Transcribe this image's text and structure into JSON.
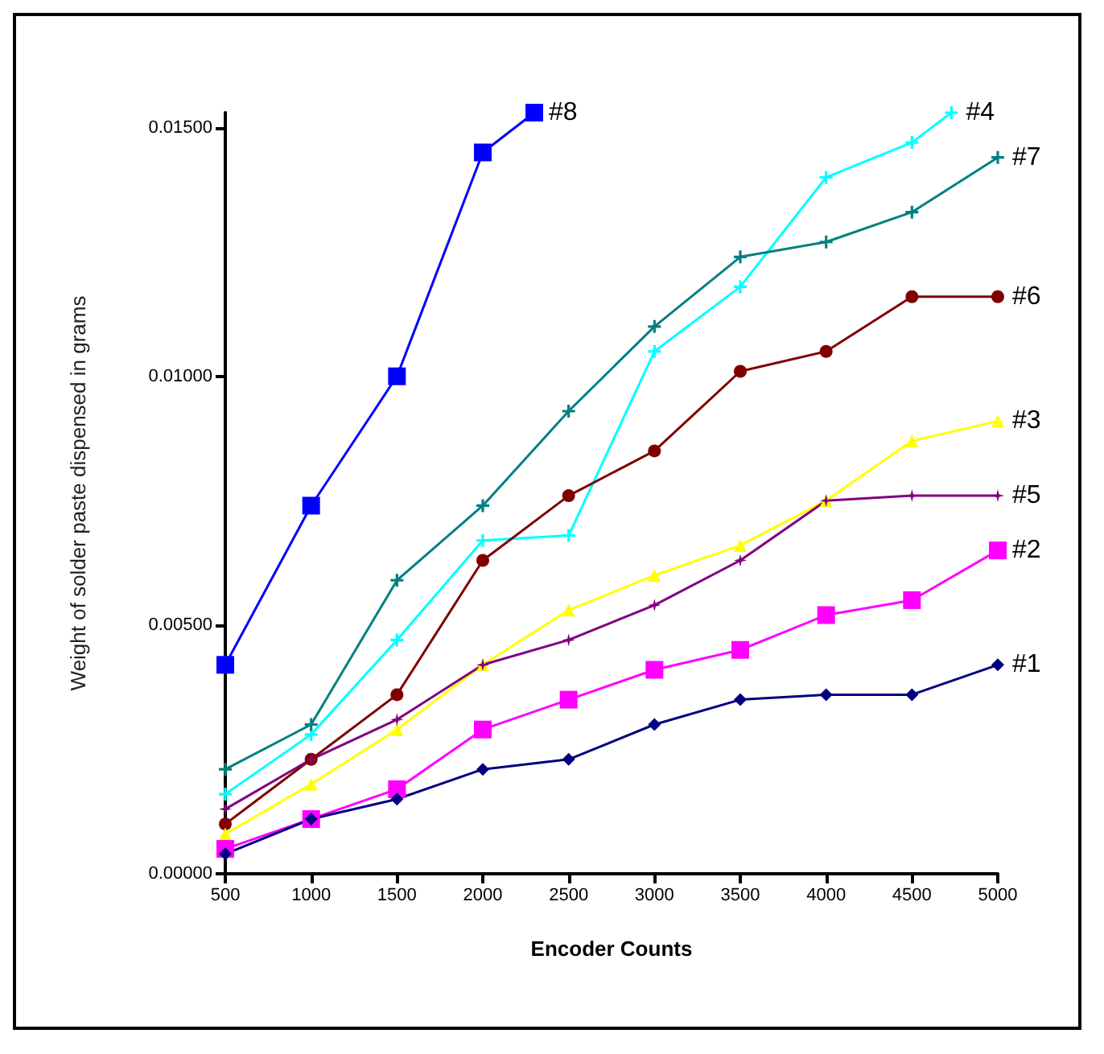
{
  "chart_data": {
    "type": "line",
    "xlabel": "Encoder Counts",
    "ylabel": "Weight of solder paste dispensed in grams",
    "grid": false,
    "legend": false,
    "xlim": [
      500,
      5000
    ],
    "xticks": [
      500,
      1000,
      1500,
      2000,
      2500,
      3000,
      3500,
      4000,
      4500,
      5000
    ],
    "ylim": [
      0,
      0.0153
    ],
    "yticks": [
      {
        "value": 0,
        "label": "0.00000"
      },
      {
        "value": 0.005,
        "label": "0.00500"
      },
      {
        "value": 0.01,
        "label": "0.01000"
      },
      {
        "value": 0.015,
        "label": "0.01500"
      }
    ],
    "series": [
      {
        "name": "#8",
        "color": "#0000ff",
        "marker": "square",
        "x": [
          500,
          1000,
          1500,
          2000,
          2300
        ],
        "values": [
          0.0042,
          0.0074,
          0.01,
          0.0145,
          0.0153
        ]
      },
      {
        "name": "#4",
        "color": "#00ffff",
        "marker": "cross",
        "x": [
          500,
          1000,
          1500,
          2000,
          2500,
          3000,
          3500,
          4000,
          4500,
          4730
        ],
        "values": [
          0.0016,
          0.0028,
          0.0047,
          0.0067,
          0.0068,
          0.0105,
          0.0118,
          0.014,
          0.0147,
          0.0153
        ]
      },
      {
        "name": "#7",
        "color": "#008080",
        "marker": "cross",
        "x": [
          500,
          1000,
          1500,
          2000,
          2500,
          3000,
          3500,
          4000,
          4500,
          5000
        ],
        "values": [
          0.0021,
          0.003,
          0.0059,
          0.0074,
          0.0093,
          0.011,
          0.0124,
          0.0127,
          0.0133,
          0.0144
        ]
      },
      {
        "name": "#6",
        "color": "#800000",
        "marker": "circle",
        "x": [
          500,
          1000,
          1500,
          2000,
          2500,
          3000,
          3500,
          4000,
          4500,
          5000
        ],
        "values": [
          0.001,
          0.0023,
          0.0036,
          0.0063,
          0.0076,
          0.0085,
          0.0101,
          0.0105,
          0.0116,
          0.0116
        ]
      },
      {
        "name": "#3",
        "color": "#ffff00",
        "marker": "triangle",
        "x": [
          500,
          1000,
          1500,
          2000,
          2500,
          3000,
          3500,
          4000,
          4500,
          5000
        ],
        "values": [
          0.0008,
          0.0018,
          0.0029,
          0.0042,
          0.0053,
          0.006,
          0.0066,
          0.0075,
          0.0087,
          0.0091
        ]
      },
      {
        "name": "#5",
        "color": "#800080",
        "marker": "star",
        "x": [
          500,
          1000,
          1500,
          2000,
          2500,
          3000,
          3500,
          4000,
          4500,
          5000
        ],
        "values": [
          0.0013,
          0.0023,
          0.0031,
          0.0042,
          0.0047,
          0.0054,
          0.0063,
          0.0075,
          0.0076,
          0.0076
        ]
      },
      {
        "name": "#2",
        "color": "#ff00ff",
        "marker": "square",
        "x": [
          500,
          1000,
          1500,
          2000,
          2500,
          3000,
          3500,
          4000,
          4500,
          5000
        ],
        "values": [
          0.0005,
          0.0011,
          0.0017,
          0.0029,
          0.0035,
          0.0041,
          0.0045,
          0.0052,
          0.0055,
          0.0065
        ]
      },
      {
        "name": "#1",
        "color": "#000080",
        "marker": "diamond",
        "x": [
          500,
          1000,
          1500,
          2000,
          2500,
          3000,
          3500,
          4000,
          4500,
          5000
        ],
        "values": [
          0.0004,
          0.0011,
          0.0015,
          0.0021,
          0.0023,
          0.003,
          0.0035,
          0.0036,
          0.0036,
          0.0042
        ]
      }
    ]
  }
}
